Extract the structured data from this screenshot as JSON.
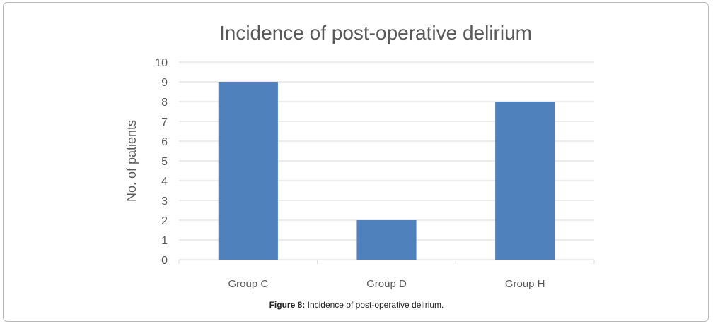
{
  "chart_data": {
    "type": "bar",
    "title": "Incidence of post-operative delirium",
    "ylabel": "No. of patients",
    "xlabel": "",
    "categories": [
      "Group C",
      "Group D",
      "Group H"
    ],
    "values": [
      9,
      2,
      8
    ],
    "ylim": [
      0,
      10
    ],
    "yticks": [
      "0",
      "1",
      "2",
      "3",
      "4",
      "5",
      "6",
      "7",
      "8",
      "9",
      "10"
    ],
    "grid": true,
    "legend": "none",
    "bar_color": "#4f81bd",
    "grid_color": "#d9d9d9"
  },
  "caption": {
    "label": "Figure 8:",
    "text": "Incidence of post-operative delirium."
  }
}
